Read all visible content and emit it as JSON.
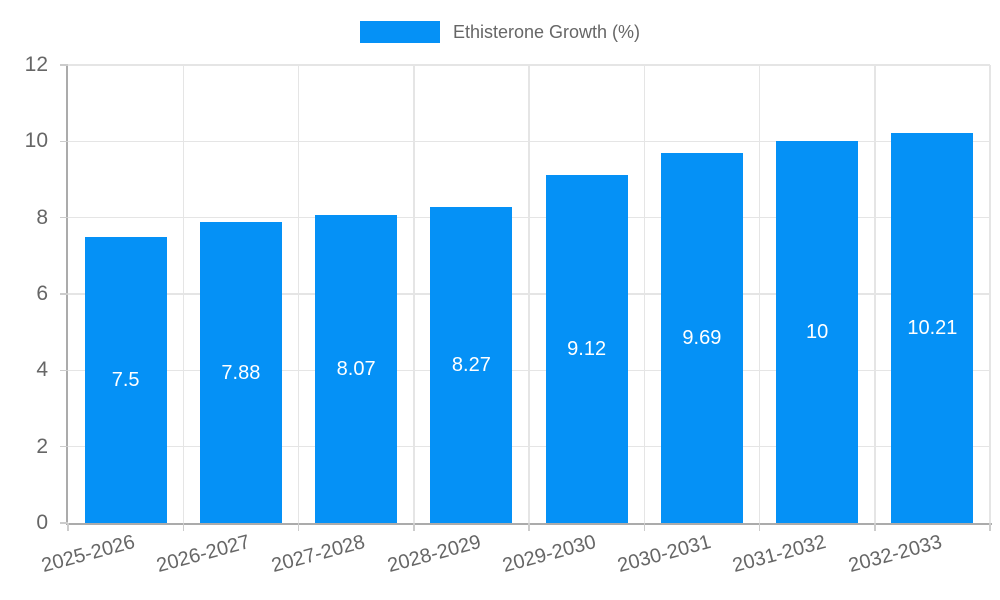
{
  "chart_data": {
    "type": "bar",
    "title": "",
    "xlabel": "",
    "ylabel": "",
    "categories": [
      "2025-2026",
      "2026-2027",
      "2027-2028",
      "2028-2029",
      "2029-2030",
      "2030-2031",
      "2031-2032",
      "2032-2033"
    ],
    "series": [
      {
        "name": "Ethisterone Growth (%)",
        "values": [
          7.5,
          7.88,
          8.07,
          8.27,
          9.12,
          9.69,
          10,
          10.21
        ]
      }
    ],
    "value_labels": [
      "7.5",
      "7.88",
      "8.07",
      "8.27",
      "9.12",
      "9.69",
      "10",
      "10.21"
    ],
    "ylim": [
      0,
      12
    ],
    "yticks": [
      0,
      2,
      4,
      6,
      8,
      10,
      12
    ],
    "grid": true,
    "legend_position": "top",
    "x_tick_rotation_deg": -15
  },
  "colors": {
    "bar": "#0591f6",
    "grid": "#e5e5e5",
    "tickmark": "#cccccc",
    "axis": "#ababab",
    "tick_text": "#666666",
    "value_label": "#ffffff",
    "background": "#ffffff"
  }
}
